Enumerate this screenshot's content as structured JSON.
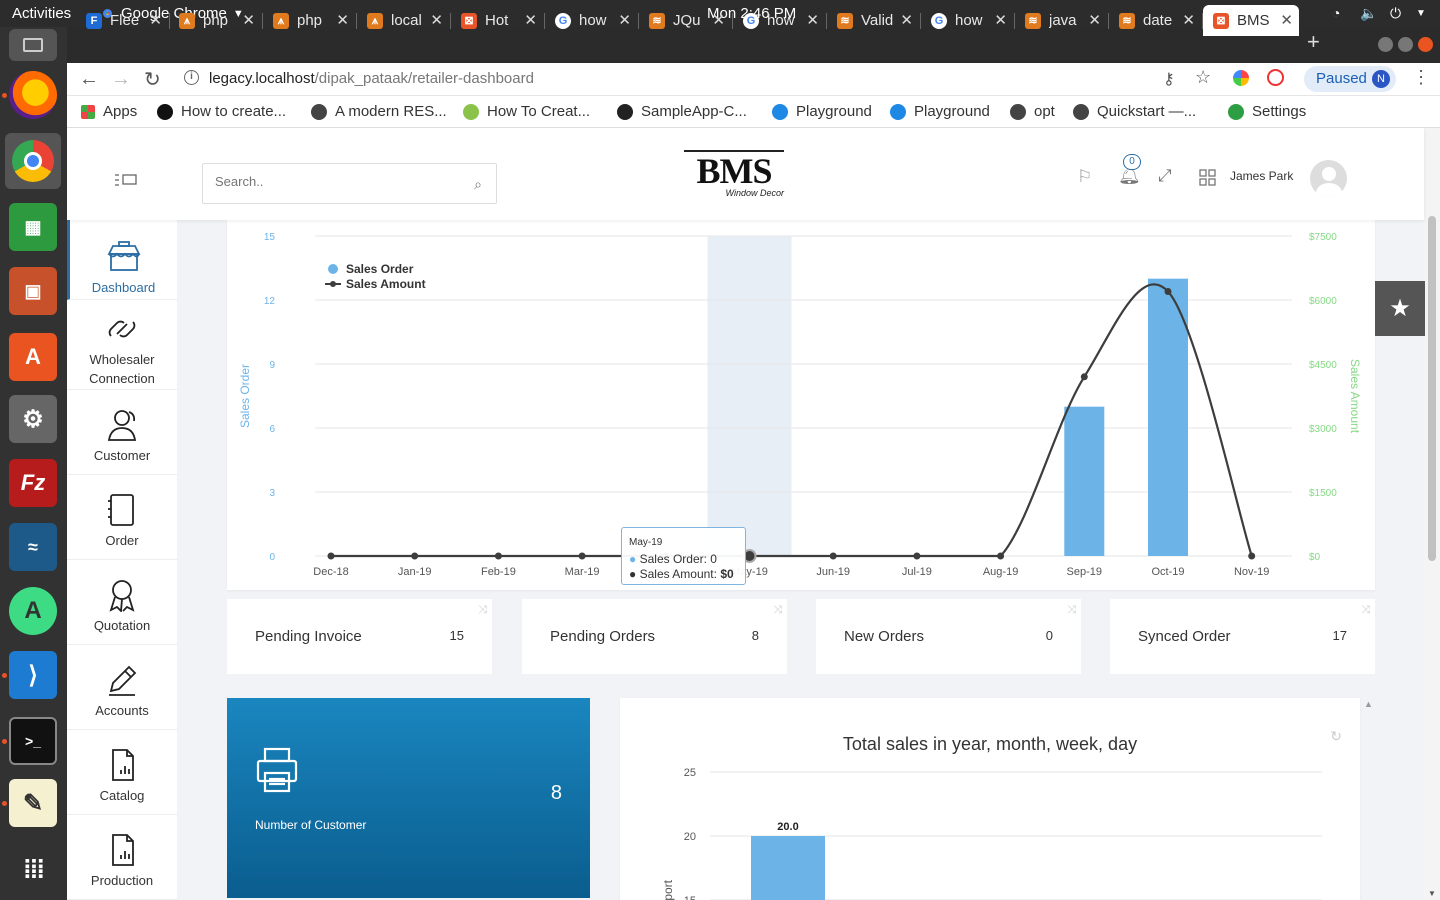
{
  "os": {
    "activities": "Activities",
    "app": "Google Chrome",
    "clock": "Mon  2:46 PM"
  },
  "tabs": [
    {
      "label": "Flee",
      "color": "#1e6bd6",
      "glyph": "F"
    },
    {
      "label": "php",
      "color": "#e07a1f",
      "glyph": "⩚"
    },
    {
      "label": "php",
      "color": "#e07a1f",
      "glyph": "⩚"
    },
    {
      "label": "local",
      "color": "#e07a1f",
      "glyph": "⩚"
    },
    {
      "label": "Hot",
      "color": "#e8542a",
      "glyph": "⊠"
    },
    {
      "label": "how",
      "color": "#ffffff",
      "glyph": "G"
    },
    {
      "label": "JQu",
      "color": "#e07a1f",
      "glyph": "≋"
    },
    {
      "label": "how",
      "color": "#ffffff",
      "glyph": "G"
    },
    {
      "label": "Valid",
      "color": "#e07a1f",
      "glyph": "≋"
    },
    {
      "label": "how",
      "color": "#ffffff",
      "glyph": "G"
    },
    {
      "label": "java",
      "color": "#e07a1f",
      "glyph": "≋"
    },
    {
      "label": "date",
      "color": "#e07a1f",
      "glyph": "≋"
    },
    {
      "label": "BMS",
      "color": "#e8542a",
      "glyph": "⊠"
    }
  ],
  "address": {
    "host": "legacy.localhost",
    "path": "/dipak_pataak/retailer-dashboard",
    "paused": "Paused",
    "profile": "N"
  },
  "bookmarks": [
    {
      "label": "Apps",
      "color": "#e44"
    },
    {
      "label": "How to create...",
      "color": "#111"
    },
    {
      "label": "A modern RES...",
      "color": "#444"
    },
    {
      "label": "How To Creat...",
      "color": "#8bc34a"
    },
    {
      "label": "SampleApp-C...",
      "color": "#222"
    },
    {
      "label": "Playground",
      "color": "#1e88e5"
    },
    {
      "label": "Playground",
      "color": "#1e88e5"
    },
    {
      "label": "opt",
      "color": "#444"
    },
    {
      "label": "Quickstart —...",
      "color": "#444"
    },
    {
      "label": "Settings",
      "color": "#2e9e44"
    }
  ],
  "header": {
    "search_placeholder": "Search..",
    "logo_main": "BMS",
    "logo_sub": "Window Decor",
    "notif_count": "0",
    "user": "James Park"
  },
  "nav": [
    {
      "label": "Dashboard"
    },
    {
      "label": "Wholesaler Connection"
    },
    {
      "label": "Customer"
    },
    {
      "label": "Order"
    },
    {
      "label": "Quotation"
    },
    {
      "label": "Accounts"
    },
    {
      "label": "Catalog"
    },
    {
      "label": "Production"
    }
  ],
  "stats": [
    {
      "label": "Pending Invoice",
      "value": "15"
    },
    {
      "label": "Pending Orders",
      "value": "8"
    },
    {
      "label": "New Orders",
      "value": "0"
    },
    {
      "label": "Synced Order",
      "value": "17"
    }
  ],
  "customer_card": {
    "label": "Number of Customer",
    "value": "8"
  },
  "tooltip": {
    "title": "May-19",
    "order": "Sales Order: 0",
    "amount_prefix": "Sales Amount: ",
    "amount": "$0"
  },
  "chart_data": [
    {
      "type": "bar+line",
      "categories": [
        "Dec-18",
        "Jan-19",
        "Feb-19",
        "Mar-19",
        "Apr-19",
        "May-19",
        "Jun-19",
        "Jul-19",
        "Aug-19",
        "Sep-19",
        "Oct-19",
        "Nov-19"
      ],
      "series": [
        {
          "name": "Sales Order",
          "type": "bar",
          "axis": "left",
          "color": "#6cb4e8",
          "values": [
            0,
            0,
            0,
            0,
            0,
            0,
            0,
            0,
            0,
            7,
            13,
            0
          ]
        },
        {
          "name": "Sales Amount",
          "type": "line",
          "axis": "right",
          "color": "#3d3d3d",
          "values": [
            0,
            0,
            0,
            0,
            0,
            0,
            0,
            0,
            0,
            4200,
            6200,
            0
          ]
        }
      ],
      "ylabel": "Sales Order",
      "y2label": "Sales Amount",
      "ylim": [
        0,
        15
      ],
      "yticks": [
        "0",
        "3",
        "6",
        "9",
        "12",
        "15"
      ],
      "y2lim": [
        0,
        7500
      ],
      "y2ticks": [
        "$0",
        "$1500",
        "$3000",
        "$4500",
        "$6000",
        "$7500"
      ],
      "grid": true,
      "legend": "top-left"
    },
    {
      "type": "bar",
      "title": "Total sales in year, month, week, day",
      "ylabel": "Report",
      "ylim_visible": [
        15,
        25
      ],
      "yticks": [
        "15",
        "20",
        "25"
      ],
      "values": [
        20.0
      ],
      "data_labels": [
        "20.0"
      ]
    }
  ]
}
